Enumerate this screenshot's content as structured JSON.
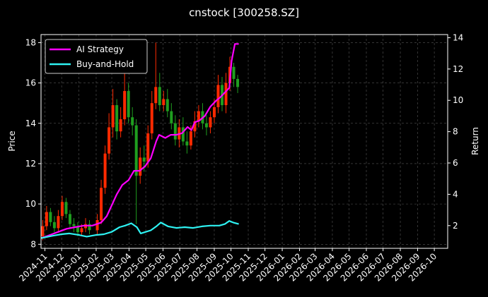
{
  "chart_data": {
    "type": "line",
    "title": "cnstock [300258.SZ]",
    "xlabel": "",
    "ylabel": "Price",
    "y2label": "Return",
    "ylim": [
      7.8,
      18.4
    ],
    "y2lim": [
      0.55,
      14.2
    ],
    "yticks": [
      8,
      10,
      12,
      14,
      16,
      18
    ],
    "y2ticks": [
      2,
      4,
      6,
      8,
      10,
      12,
      14
    ],
    "xlim": [
      "2024-10-25",
      "2026-10-25"
    ],
    "xticks": [
      "2024-11",
      "2024-12",
      "2025-01",
      "2025-02",
      "2025-03",
      "2025-04",
      "2025-05",
      "2025-06",
      "2025-07",
      "2025-08",
      "2025-09",
      "2025-10",
      "2025-11",
      "2025-12",
      "2026-01",
      "2026-02",
      "2026-03",
      "2026-04",
      "2026-05",
      "2026-06",
      "2026-07",
      "2026-08",
      "2026-09",
      "2026-10"
    ],
    "grid": true,
    "legend_position": "top-left",
    "candle_colors": {
      "up": "#ff2a00",
      "down": "#1f9e1f"
    },
    "price_candles": {
      "dates": [
        "2024-10-28",
        "2024-11-04",
        "2024-11-11",
        "2024-11-18",
        "2024-11-25",
        "2024-12-02",
        "2024-12-09",
        "2024-12-16",
        "2024-12-23",
        "2024-12-30",
        "2025-01-06",
        "2025-01-13",
        "2025-01-20",
        "2025-02-03",
        "2025-02-10",
        "2025-02-17",
        "2025-02-24",
        "2025-03-03",
        "2025-03-10",
        "2025-03-17",
        "2025-03-24",
        "2025-03-31",
        "2025-04-07",
        "2025-04-14",
        "2025-04-21",
        "2025-04-28",
        "2025-05-05",
        "2025-05-12",
        "2025-05-19",
        "2025-05-26",
        "2025-06-02",
        "2025-06-09",
        "2025-06-16",
        "2025-06-23",
        "2025-06-30",
        "2025-07-07",
        "2025-07-14",
        "2025-07-21",
        "2025-07-28",
        "2025-08-04",
        "2025-08-11",
        "2025-08-18",
        "2025-08-25",
        "2025-09-01",
        "2025-09-08",
        "2025-09-15",
        "2025-09-22",
        "2025-09-29",
        "2025-10-06",
        "2025-10-13"
      ],
      "open": [
        8.4,
        8.9,
        9.6,
        9.1,
        8.8,
        9.4,
        10.1,
        9.5,
        9.0,
        8.9,
        8.6,
        8.8,
        9.0,
        8.7,
        9.2,
        10.8,
        12.5,
        13.8,
        14.9,
        13.6,
        14.2,
        15.6,
        14.3,
        13.9,
        11.4,
        12.3,
        12.1,
        13.5,
        15.0,
        15.8,
        14.9,
        15.2,
        14.6,
        14.0,
        13.2,
        13.8,
        13.1,
        12.9,
        13.6,
        14.1,
        14.6,
        14.0,
        13.8,
        14.3,
        14.8,
        15.9,
        14.9,
        16.0,
        16.8,
        16.2
      ],
      "close": [
        8.9,
        9.6,
        9.1,
        8.8,
        9.4,
        10.1,
        9.5,
        9.0,
        8.9,
        8.6,
        8.8,
        9.0,
        8.7,
        9.2,
        10.8,
        12.5,
        13.8,
        14.9,
        13.6,
        14.2,
        15.6,
        14.3,
        13.9,
        11.4,
        12.3,
        12.1,
        13.5,
        15.0,
        15.8,
        14.9,
        15.2,
        14.6,
        14.0,
        13.2,
        13.8,
        13.1,
        12.9,
        13.6,
        14.1,
        14.6,
        14.0,
        13.8,
        14.3,
        14.8,
        15.9,
        14.9,
        16.0,
        16.8,
        16.2,
        15.8
      ],
      "high": [
        9.2,
        9.9,
        9.8,
        9.4,
        9.7,
        10.4,
        10.3,
        9.7,
        9.3,
        9.1,
        9.0,
        9.3,
        9.2,
        9.5,
        11.2,
        12.9,
        14.5,
        15.7,
        15.2,
        14.8,
        16.8,
        16.0,
        14.8,
        14.2,
        12.8,
        12.9,
        13.9,
        15.6,
        18.0,
        16.5,
        15.6,
        15.7,
        15.0,
        14.4,
        14.2,
        14.3,
        13.6,
        13.9,
        14.6,
        14.9,
        15.0,
        14.4,
        14.6,
        15.2,
        16.4,
        16.3,
        16.5,
        17.3,
        17.0,
        16.4
      ],
      "low": [
        8.2,
        8.7,
        8.9,
        8.6,
        8.6,
        9.2,
        9.3,
        8.8,
        8.6,
        8.4,
        8.4,
        8.6,
        8.5,
        8.5,
        9.0,
        10.5,
        12.2,
        13.3,
        13.2,
        13.3,
        13.9,
        14.0,
        13.4,
        9.0,
        11.0,
        11.6,
        11.8,
        13.2,
        14.7,
        14.6,
        14.6,
        14.3,
        13.7,
        12.9,
        12.8,
        12.9,
        12.5,
        12.7,
        13.3,
        13.8,
        13.7,
        13.4,
        13.5,
        14.0,
        14.5,
        14.6,
        14.5,
        15.6,
        15.8,
        15.5
      ]
    },
    "series": [
      {
        "name": "AI Strategy",
        "color": "#ff00ff",
        "axis": "right",
        "x": [
          "2024-10-25",
          "2024-11-10",
          "2024-11-25",
          "2024-12-10",
          "2024-12-25",
          "2025-01-10",
          "2025-01-25",
          "2025-02-10",
          "2025-02-20",
          "2025-03-01",
          "2025-03-10",
          "2025-03-20",
          "2025-03-31",
          "2025-04-10",
          "2025-04-20",
          "2025-04-30",
          "2025-05-10",
          "2025-05-20",
          "2025-05-25",
          "2025-06-05",
          "2025-06-15",
          "2025-06-25",
          "2025-07-05",
          "2025-07-15",
          "2025-07-22",
          "2025-07-28",
          "2025-08-05",
          "2025-08-15",
          "2025-08-25",
          "2025-09-05",
          "2025-09-12",
          "2025-09-20",
          "2025-09-28",
          "2025-10-02",
          "2025-10-08",
          "2025-10-15"
        ],
        "values": [
          1.2,
          1.4,
          1.6,
          1.8,
          1.9,
          2.0,
          2.0,
          2.2,
          2.6,
          3.3,
          4.0,
          4.6,
          4.9,
          5.5,
          5.5,
          5.8,
          6.3,
          7.4,
          7.8,
          7.6,
          7.8,
          7.8,
          7.9,
          8.3,
          8.1,
          8.6,
          8.7,
          9.0,
          9.6,
          10.0,
          10.2,
          10.5,
          10.8,
          12.5,
          13.6,
          13.6
        ]
      },
      {
        "name": "Buy-and-Hold",
        "color": "#2ef2f2",
        "axis": "right",
        "x": [
          "2024-10-25",
          "2024-11-15",
          "2024-12-01",
          "2024-12-15",
          "2025-01-01",
          "2025-01-15",
          "2025-02-01",
          "2025-02-15",
          "2025-03-01",
          "2025-03-15",
          "2025-03-25",
          "2025-04-05",
          "2025-04-15",
          "2025-04-22",
          "2025-05-01",
          "2025-05-10",
          "2025-05-20",
          "2025-05-28",
          "2025-06-10",
          "2025-06-25",
          "2025-07-10",
          "2025-07-25",
          "2025-08-10",
          "2025-08-25",
          "2025-09-10",
          "2025-09-20",
          "2025-09-28",
          "2025-10-05",
          "2025-10-15"
        ],
        "values": [
          1.2,
          1.35,
          1.45,
          1.5,
          1.4,
          1.3,
          1.4,
          1.45,
          1.6,
          1.9,
          2.0,
          2.15,
          1.9,
          1.5,
          1.6,
          1.7,
          1.95,
          2.2,
          1.95,
          1.85,
          1.9,
          1.85,
          1.95,
          2.0,
          2.0,
          2.1,
          2.3,
          2.2,
          2.1
        ]
      }
    ]
  }
}
